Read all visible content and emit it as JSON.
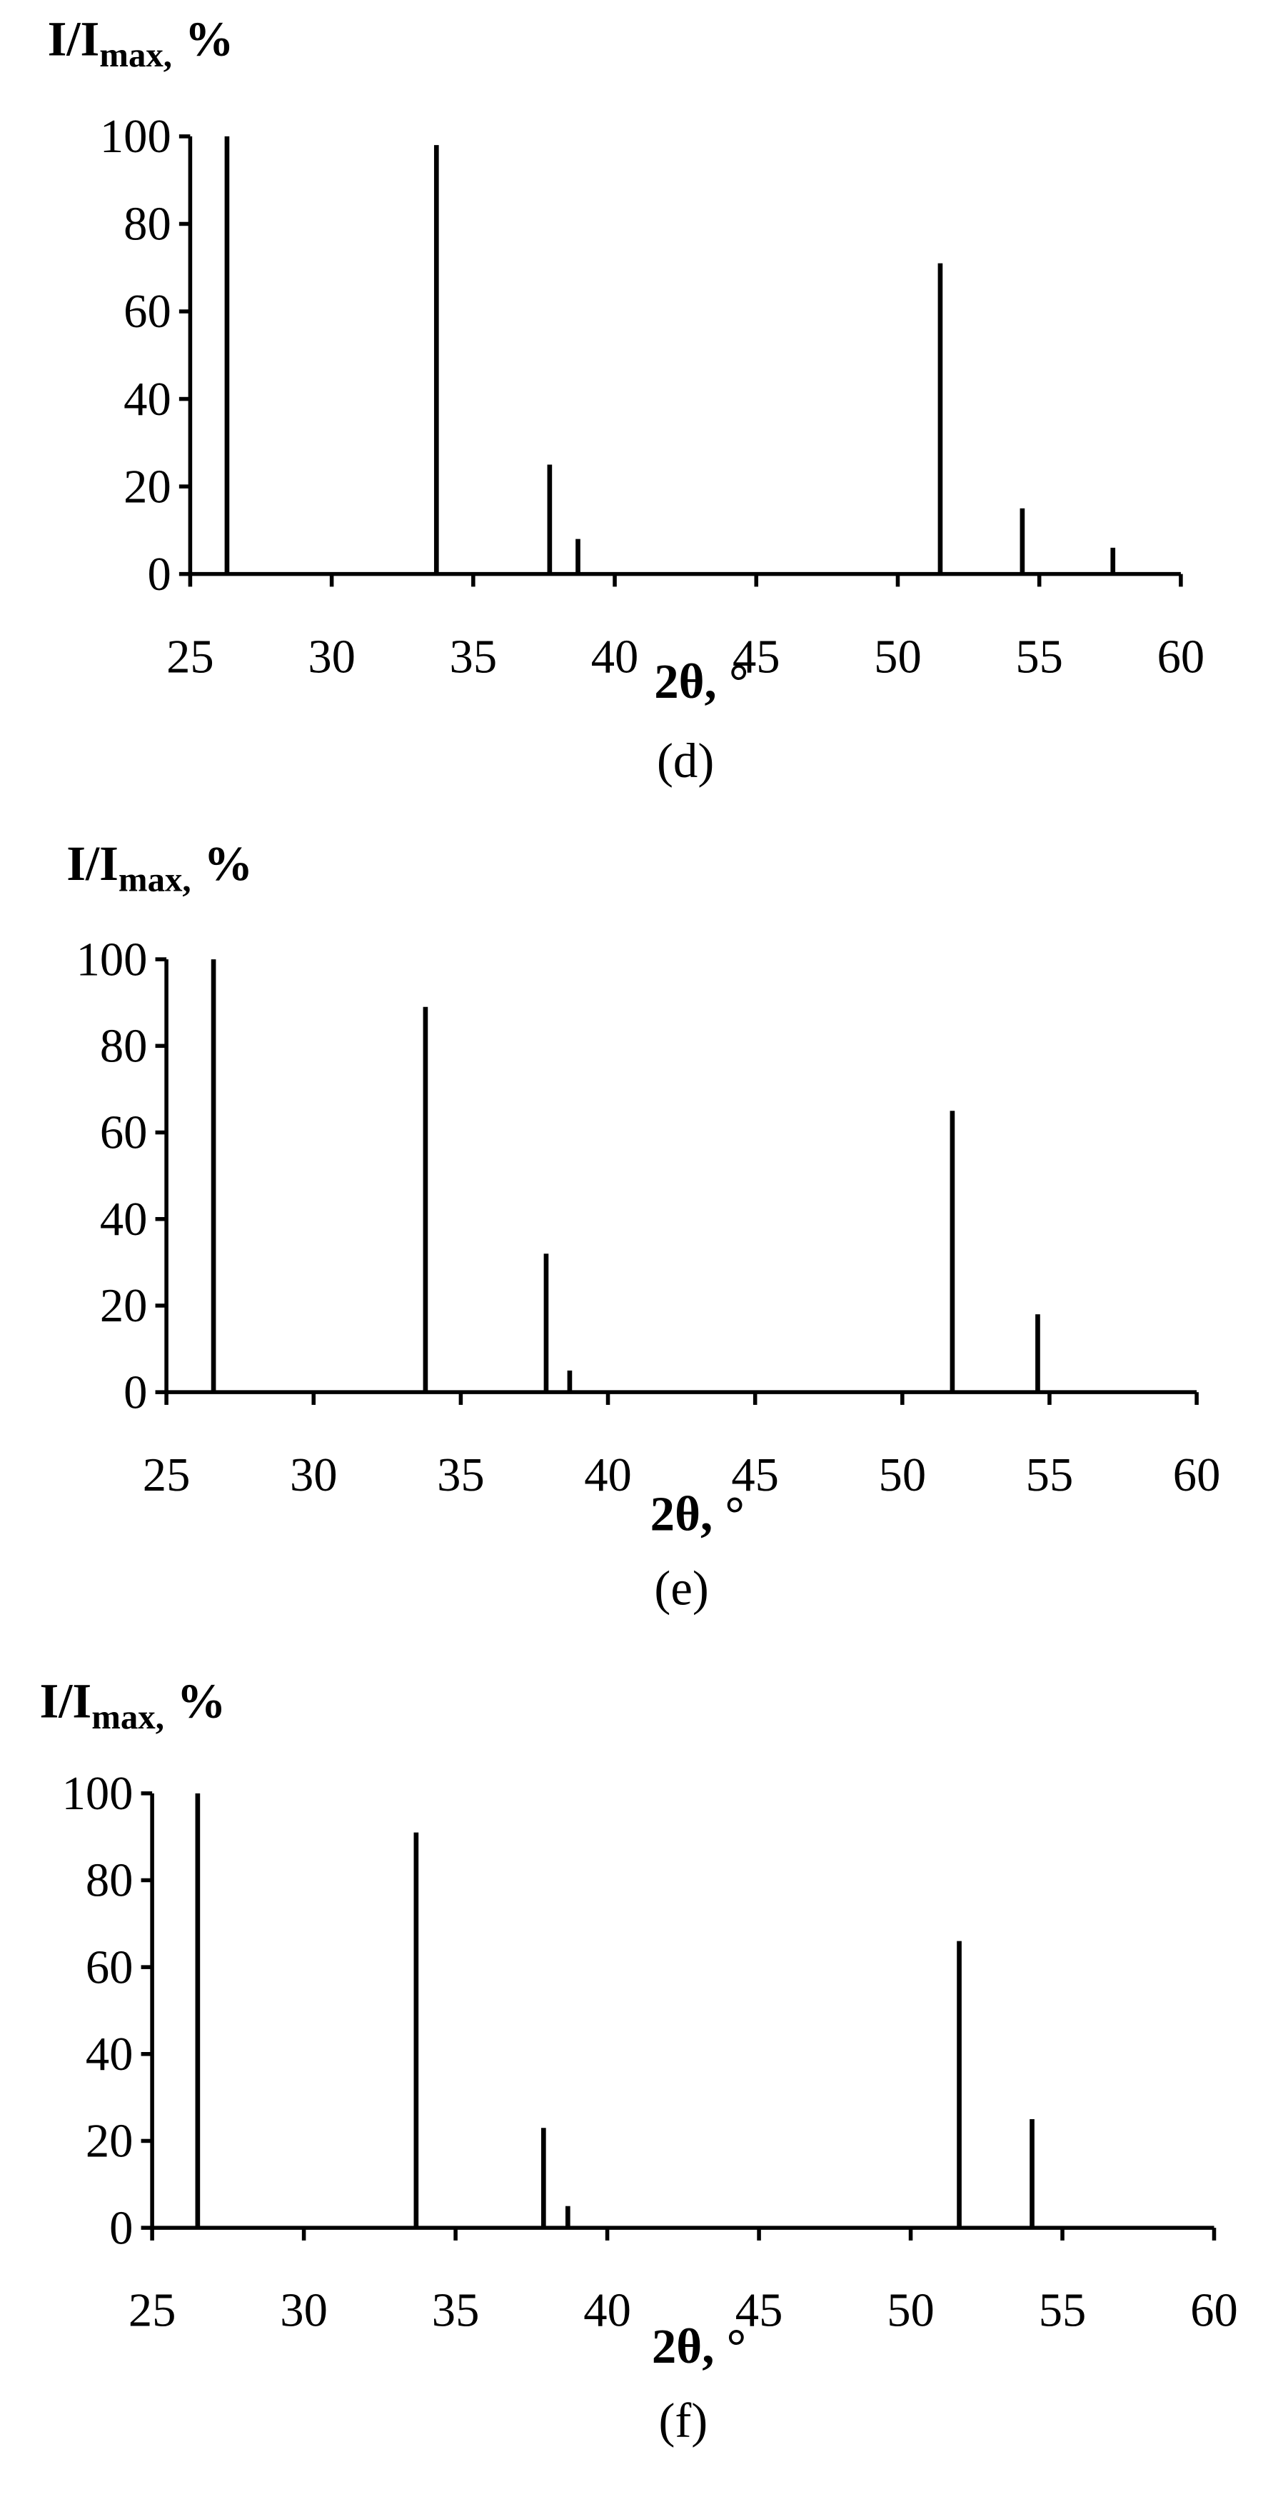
{
  "chart_data": [
    {
      "type": "stem",
      "caption": "(d)",
      "xlabel": "2θ, °",
      "ylabel": {
        "main": "I/I",
        "sub": "max,",
        "unit": "%"
      },
      "color": "#000000",
      "x": [
        26.3,
        33.7,
        37.7,
        38.7,
        51.5,
        54.4,
        57.6
      ],
      "values": [
        100,
        98,
        25,
        8,
        71,
        15,
        6
      ],
      "xlim": [
        25,
        60
      ],
      "xticks": [
        25,
        30,
        35,
        40,
        45,
        50,
        55,
        60
      ],
      "ylim": [
        0,
        100
      ],
      "yticks": [
        0,
        20,
        40,
        60,
        80,
        100
      ]
    },
    {
      "type": "stem",
      "caption": "(e)",
      "xlabel": "2θ, °",
      "ylabel": {
        "main": "I/I",
        "sub": "max,",
        "unit": "%"
      },
      "color": "#000000",
      "x": [
        26.6,
        33.8,
        37.9,
        38.7,
        51.7,
        54.6
      ],
      "values": [
        100,
        89,
        32,
        5,
        65,
        18
      ],
      "xlim": [
        25,
        60
      ],
      "xticks": [
        25,
        30,
        35,
        40,
        45,
        50,
        55,
        60
      ],
      "ylim": [
        0,
        100
      ],
      "yticks": [
        0,
        20,
        40,
        60,
        80,
        100
      ]
    },
    {
      "type": "stem",
      "caption": "(f)",
      "xlabel": "2θ, °",
      "ylabel": {
        "main": "I/I",
        "sub": "max,",
        "unit": "%"
      },
      "color": "#000000",
      "x": [
        26.5,
        33.7,
        37.9,
        38.7,
        51.6,
        54.0
      ],
      "values": [
        100,
        91,
        23,
        5,
        66,
        25
      ],
      "xlim": [
        25,
        60
      ],
      "xticks": [
        25,
        30,
        35,
        40,
        45,
        50,
        55,
        60
      ],
      "ylim": [
        0,
        100
      ],
      "yticks": [
        0,
        20,
        40,
        60,
        80,
        100
      ]
    }
  ]
}
